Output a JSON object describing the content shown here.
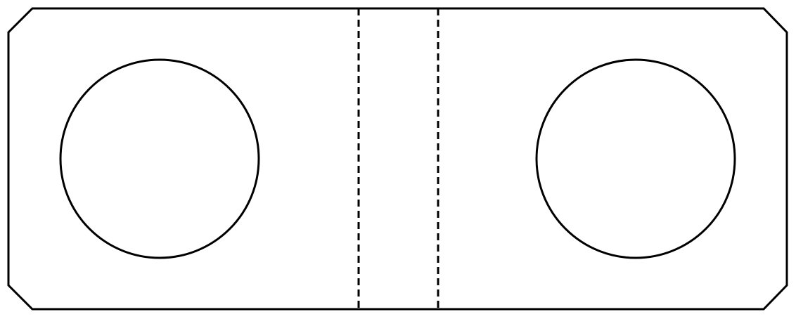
{
  "diagram": {
    "shape": "rectangular plate with chamfered corners",
    "features": {
      "holes": [
        {
          "name": "left-hole"
        },
        {
          "name": "right-hole"
        }
      ],
      "fold_lines": [
        {
          "name": "left-fold-line",
          "style": "dashed"
        },
        {
          "name": "right-fold-line",
          "style": "dashed"
        }
      ]
    },
    "colors": {
      "stroke": "#000000",
      "fill": "#ffffff"
    }
  }
}
